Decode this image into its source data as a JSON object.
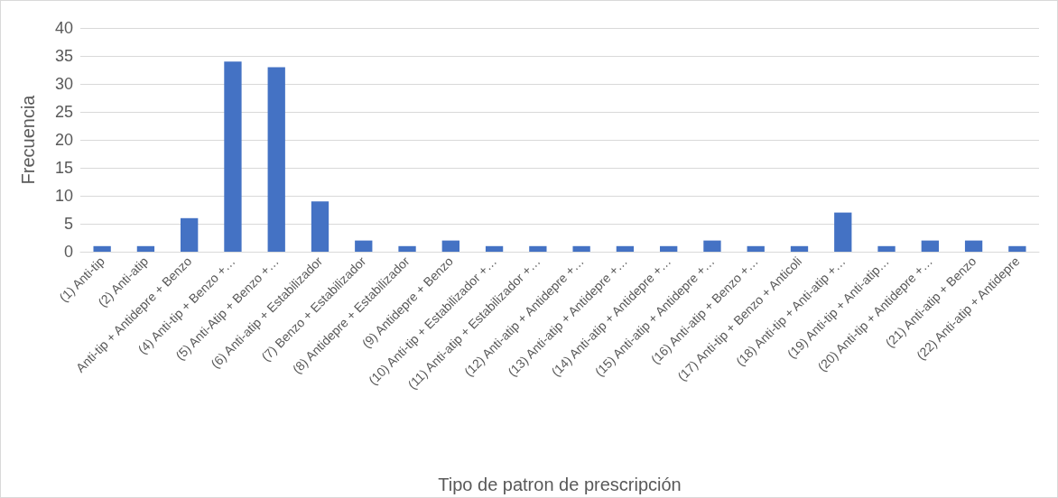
{
  "chart_data": {
    "type": "bar",
    "xlabel": "Tipo de patron de prescripción",
    "ylabel": "Frecuencia",
    "categories": [
      "(1) Anti-tip",
      "(2) Anti-atip",
      "Anti-tip + Antidepre + Benzo",
      "(4) Anti-tip + Benzo +…",
      "(5) Anti-Atip + Benzo +…",
      "(6) Anti-atip + Estabilizador",
      "(7) Benzo + Estabilizador",
      "(8) Antidepre + Estabilizador",
      "(9) Antidepre + Benzo",
      "(10) Anti-tip + Estabilizador +…",
      "(11) Anti-atip + Estabilizador +…",
      "(12) Anti-atip + Antidepre +…",
      "(13) Anti-atip + Antidepre +…",
      "(14) Anti-atip + Antidepre +…",
      "(15) Anti-atip + Antidepre +…",
      "(16) Anti-atip + Benzo +…",
      "(17) Anti-tip + Benzo + Anticoli",
      "(18) Anti-tip + Anti-atip +…",
      "(19) Anti-tip + Anti-atip…",
      "(20) Anti-tip + Antidepre +…",
      "(21) Anti-atip + Benzo",
      "(22) Anti-atip + Antidepre"
    ],
    "values": [
      1,
      1,
      6,
      34,
      33,
      9,
      2,
      1,
      2,
      1,
      1,
      1,
      1,
      1,
      2,
      1,
      1,
      7,
      1,
      2,
      2,
      1
    ],
    "color": "#4472c4",
    "ylim": [
      0,
      40
    ],
    "yticks": [
      0,
      5,
      10,
      15,
      20,
      25,
      30,
      35,
      40
    ],
    "grid": "y"
  }
}
